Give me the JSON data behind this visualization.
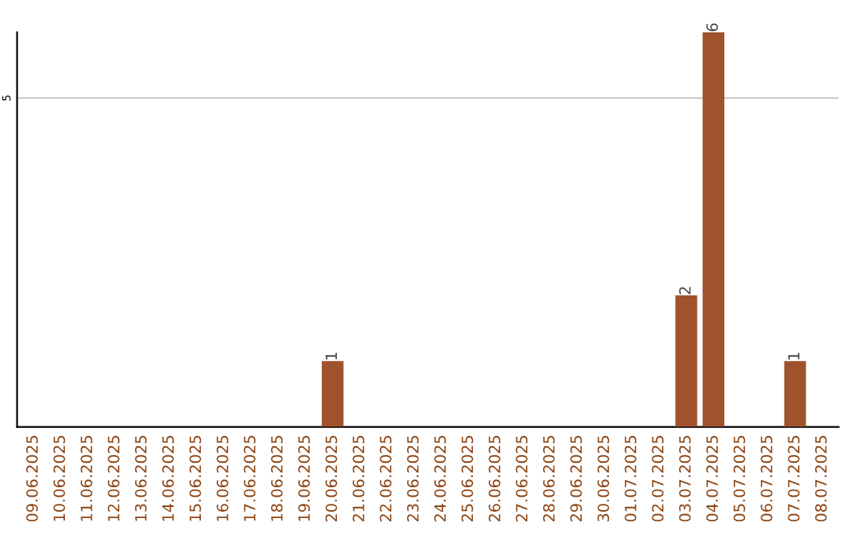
{
  "chart_data": {
    "type": "bar",
    "categories": [
      "09.06.2025",
      "10.06.2025",
      "11.06.2025",
      "12.06.2025",
      "13.06.2025",
      "14.06.2025",
      "15.06.2025",
      "16.06.2025",
      "17.06.2025",
      "18.06.2025",
      "19.06.2025",
      "20.06.2025",
      "21.06.2025",
      "22.06.2025",
      "23.06.2025",
      "24.06.2025",
      "25.06.2025",
      "26.06.2025",
      "27.06.2025",
      "28.06.2025",
      "29.06.2025",
      "30.06.2025",
      "01.07.2025",
      "02.07.2025",
      "03.07.2025",
      "04.07.2025",
      "05.07.2025",
      "06.07.2025",
      "07.07.2025",
      "08.07.2025"
    ],
    "values": [
      0,
      0,
      0,
      0,
      0,
      0,
      0,
      0,
      0,
      0,
      0,
      1,
      0,
      0,
      0,
      0,
      0,
      0,
      0,
      0,
      0,
      0,
      0,
      0,
      2,
      6,
      0,
      0,
      1,
      0
    ],
    "value_labels": [
      null,
      null,
      null,
      null,
      null,
      null,
      null,
      null,
      null,
      null,
      null,
      "1",
      null,
      null,
      null,
      null,
      null,
      null,
      null,
      null,
      null,
      null,
      null,
      null,
      "2",
      "6",
      null,
      null,
      "1",
      null
    ],
    "color": "#a0522d",
    "ylim": [
      0,
      6
    ],
    "yticks": [
      5
    ],
    "grid": "y"
  }
}
